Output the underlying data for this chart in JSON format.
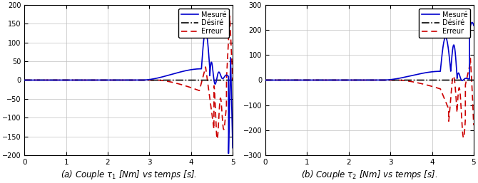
{
  "xlim": [
    0,
    5
  ],
  "ylim1": [
    -200,
    200
  ],
  "ylim2": [
    -300,
    300
  ],
  "yticks1": [
    -200,
    -150,
    -100,
    -50,
    0,
    50,
    100,
    150,
    200
  ],
  "yticks2": [
    -300,
    -200,
    -100,
    0,
    100,
    200,
    300
  ],
  "xticks": [
    0,
    1,
    2,
    3,
    4,
    5
  ],
  "color_mesure": "#0000CC",
  "color_desire": "#000000",
  "color_erreur": "#CC0000",
  "xlabel1": "(a) Couple $\\tau_1$ [Nm] vs temps [s].",
  "xlabel2": "(b) Couple $\\tau_2$ [Nm] vs temps [s].",
  "legend_mesure": "Mesuré",
  "legend_desire": "Désiré",
  "legend_erreur": "Erreur",
  "fig_width": 6.7,
  "fig_height": 2.57,
  "dpi": 100,
  "grid_color": "#c0c0c0",
  "grid_lw": 0.5,
  "line_lw": 1.2
}
